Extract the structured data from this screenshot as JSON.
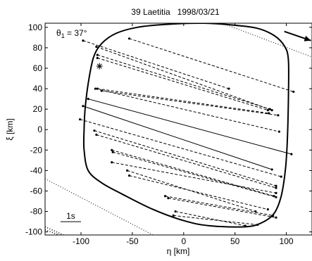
{
  "chart_data": {
    "type": "scatter",
    "title": "39 Laetitia   1998/03/21",
    "xlabel": "η [km]",
    "ylabel": "ξ [km]",
    "xlim": [
      -135,
      125
    ],
    "ylim": [
      -103,
      104
    ],
    "xticks": [
      -100,
      -50,
      0,
      50,
      100
    ],
    "yticks": [
      -100,
      -80,
      -60,
      -40,
      -20,
      0,
      20,
      40,
      60,
      80,
      100
    ],
    "grid": false,
    "angle_label": "θ",
    "angle_subscript": "1",
    "angle_value": " = 37°",
    "scale_bar_label": "1s",
    "scale_bar": {
      "x1": -120,
      "x2": -100,
      "y": -90
    },
    "direction_arrow": {
      "x1": 98,
      "y1": 96,
      "x2": 124,
      "y2": 87
    },
    "asterisk": {
      "x": -82,
      "y": 62
    },
    "outline": [
      [
        50,
        102
      ],
      [
        72,
        99
      ],
      [
        88,
        92
      ],
      [
        98,
        82
      ],
      [
        102,
        68
      ],
      [
        102,
        30
      ],
      [
        101,
        -10
      ],
      [
        99,
        -40
      ],
      [
        95,
        -65
      ],
      [
        88,
        -82
      ],
      [
        76,
        -91
      ],
      [
        60,
        -95
      ],
      [
        25,
        -94
      ],
      [
        0,
        -89
      ],
      [
        -30,
        -78
      ],
      [
        -60,
        -63
      ],
      [
        -80,
        -52
      ],
      [
        -93,
        -40
      ],
      [
        -97,
        -20
      ],
      [
        -97,
        0
      ],
      [
        -96,
        20
      ],
      [
        -93,
        45
      ],
      [
        -88,
        70
      ],
      [
        -80,
        84
      ],
      [
        -66,
        94
      ],
      [
        -45,
        100
      ],
      [
        -15,
        103
      ],
      [
        20,
        104
      ],
      [
        50,
        102
      ]
    ],
    "dotted_lines": [
      {
        "x1": 40,
        "y1": 103,
        "x2": 125,
        "y2": 71
      },
      {
        "x1": -135,
        "y1": -48,
        "x2": -30,
        "y2": -103
      },
      {
        "x1": -135,
        "y1": -95,
        "x2": -117,
        "y2": -103
      },
      {
        "x1": -135,
        "y1": -98,
        "x2": -121,
        "y2": -103
      }
    ],
    "chords": [
      {
        "x1": -53,
        "y1": 89,
        "x2": 107,
        "y2": 37,
        "style": "dashed"
      },
      {
        "x1": -98,
        "y1": 87,
        "x2": 44,
        "y2": 40,
        "style": "dashed"
      },
      {
        "x1": -85,
        "y1": 81,
        "x2": 86,
        "y2": 19,
        "style": "dashed"
      },
      {
        "x1": -84,
        "y1": 73,
        "x2": 84,
        "y2": 20,
        "style": "dashed"
      },
      {
        "x1": -84,
        "y1": 70,
        "x2": 82,
        "y2": 19,
        "style": "dashed"
      },
      {
        "x1": -84,
        "y1": 40,
        "x2": 83,
        "y2": 16,
        "style": "dashed"
      },
      {
        "x1": -80,
        "y1": 38,
        "x2": 92,
        "y2": 14,
        "style": "dashed"
      },
      {
        "x1": -86,
        "y1": 40,
        "x2": 93,
        "y2": -2,
        "style": "dashed"
      },
      {
        "x1": -93,
        "y1": 30,
        "x2": 105,
        "y2": -24,
        "style": "solid"
      },
      {
        "x1": -98,
        "y1": 23,
        "x2": 86,
        "y2": -39,
        "style": "solid"
      },
      {
        "x1": -101,
        "y1": 10,
        "x2": 95,
        "y2": -46,
        "style": "dashed"
      },
      {
        "x1": -87,
        "y1": -1,
        "x2": 90,
        "y2": -55,
        "style": "dashed"
      },
      {
        "x1": -85,
        "y1": -5,
        "x2": 90,
        "y2": -57,
        "style": "dashed"
      },
      {
        "x1": -70,
        "y1": -20,
        "x2": 88,
        "y2": -65,
        "style": "dashed"
      },
      {
        "x1": -69,
        "y1": -22,
        "x2": 90,
        "y2": -66,
        "style": "dashed"
      },
      {
        "x1": -70,
        "y1": -32,
        "x2": 90,
        "y2": -62,
        "style": "dashed"
      },
      {
        "x1": -55,
        "y1": -40,
        "x2": 70,
        "y2": -80,
        "style": "dashed"
      },
      {
        "x1": -53,
        "y1": -45,
        "x2": 82,
        "y2": -78,
        "style": "dashed"
      },
      {
        "x1": -18,
        "y1": -65,
        "x2": 87,
        "y2": -84,
        "style": "dashed"
      },
      {
        "x1": -15,
        "y1": -67,
        "x2": 90,
        "y2": -86,
        "style": "dashed"
      },
      {
        "x1": -8,
        "y1": -80,
        "x2": 60,
        "y2": -94,
        "style": "dashed"
      },
      {
        "x1": -10,
        "y1": -84,
        "x2": 72,
        "y2": -93,
        "style": "dashed"
      }
    ]
  }
}
